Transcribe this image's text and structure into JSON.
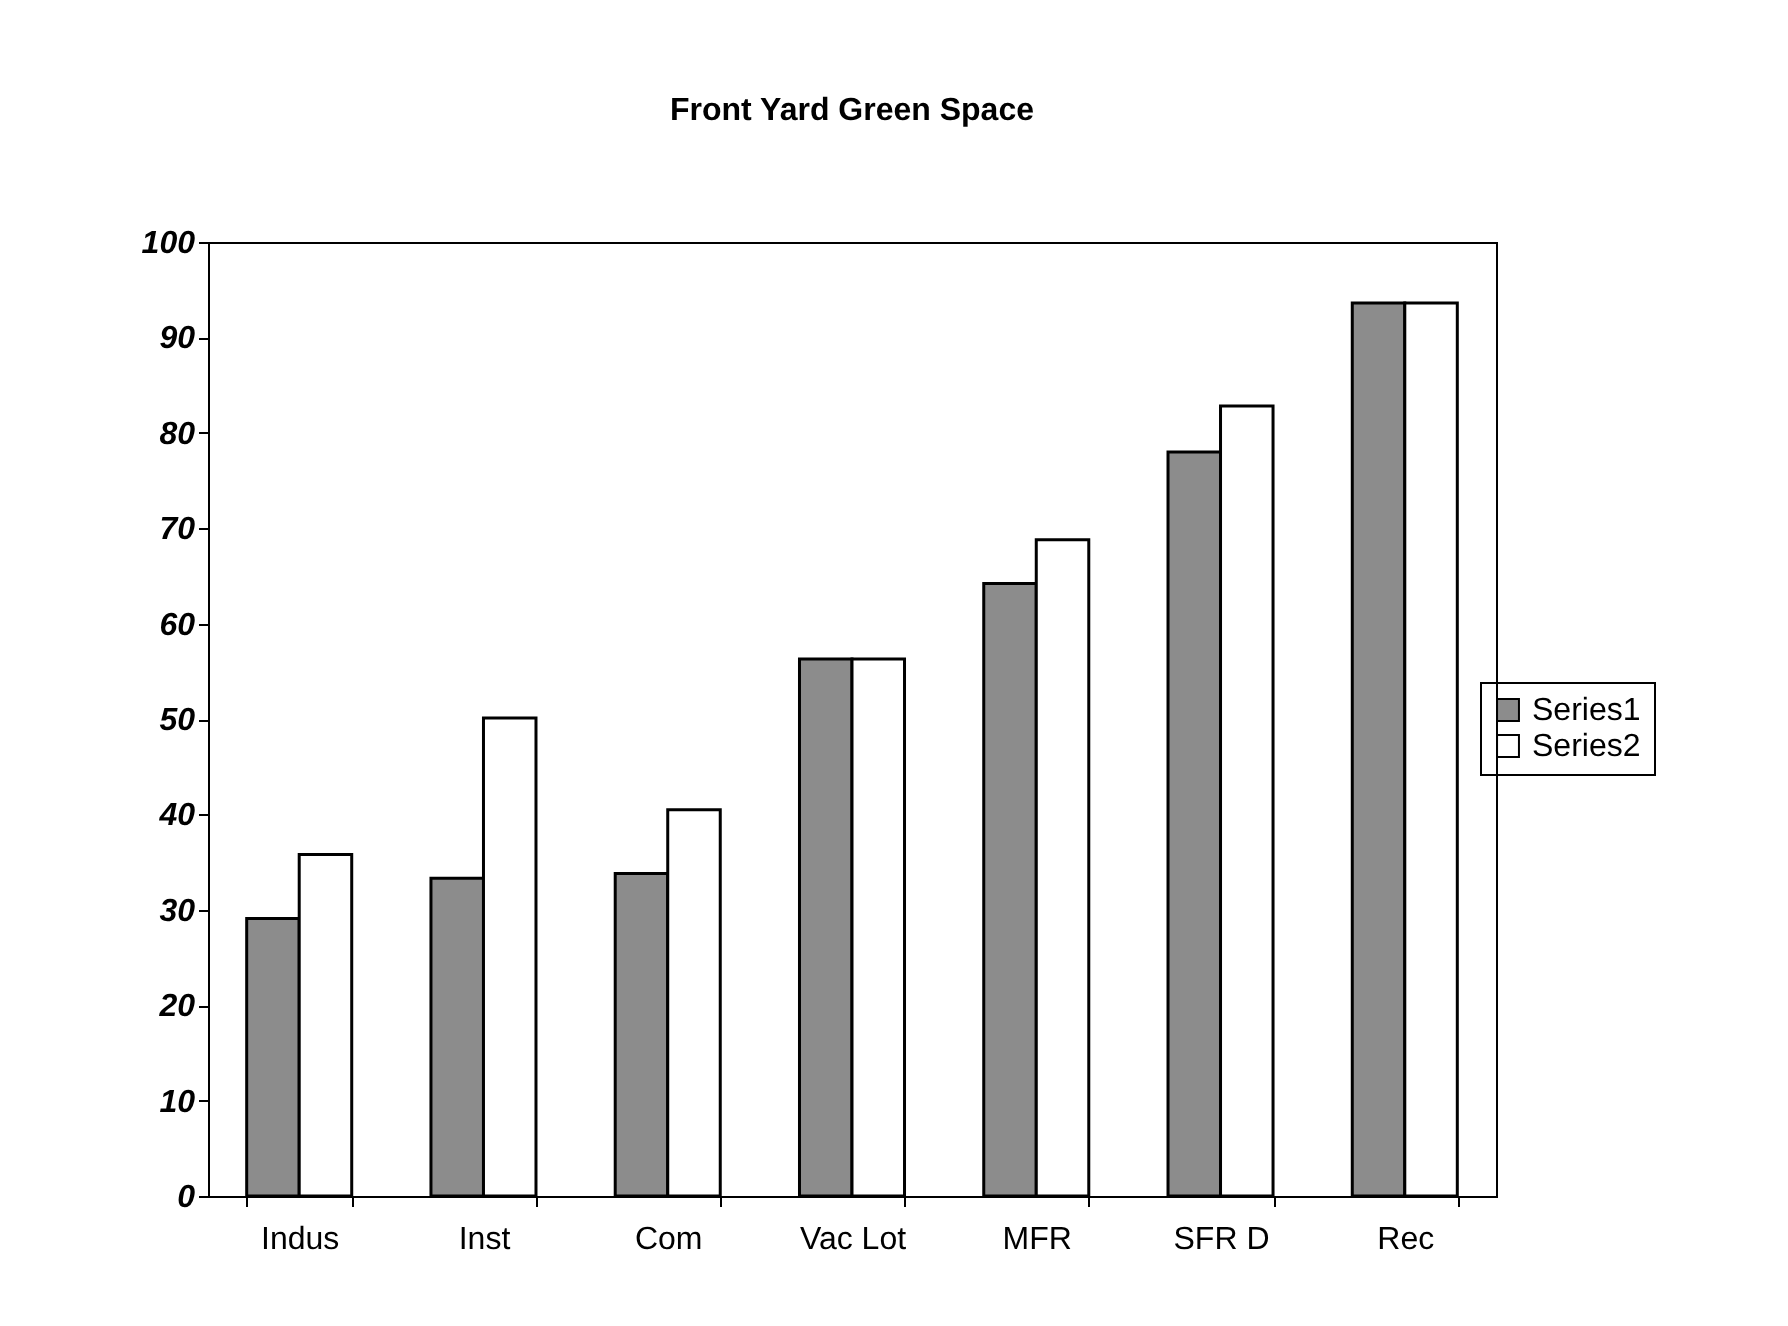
{
  "chart_data": {
    "type": "bar",
    "title": "Front Yard Green Space",
    "categories": [
      "Indus",
      "Inst",
      "Com",
      "Vac Lot",
      "MFR",
      "SFR D",
      "Rec"
    ],
    "series": [
      {
        "name": "Series1",
        "color": "#8c8c8c",
        "values": [
          29.1,
          33.3,
          33.8,
          56.3,
          64.2,
          78,
          93.6
        ]
      },
      {
        "name": "Series2",
        "color": "#ffffff",
        "values": [
          35.8,
          50.1,
          40.5,
          56.3,
          68.8,
          82.8,
          93.6
        ]
      }
    ],
    "ylim": [
      0,
      100
    ],
    "yticks": [
      0,
      10,
      20,
      30,
      40,
      50,
      60,
      70,
      80,
      90,
      100
    ],
    "grid": false,
    "legend": "right"
  }
}
